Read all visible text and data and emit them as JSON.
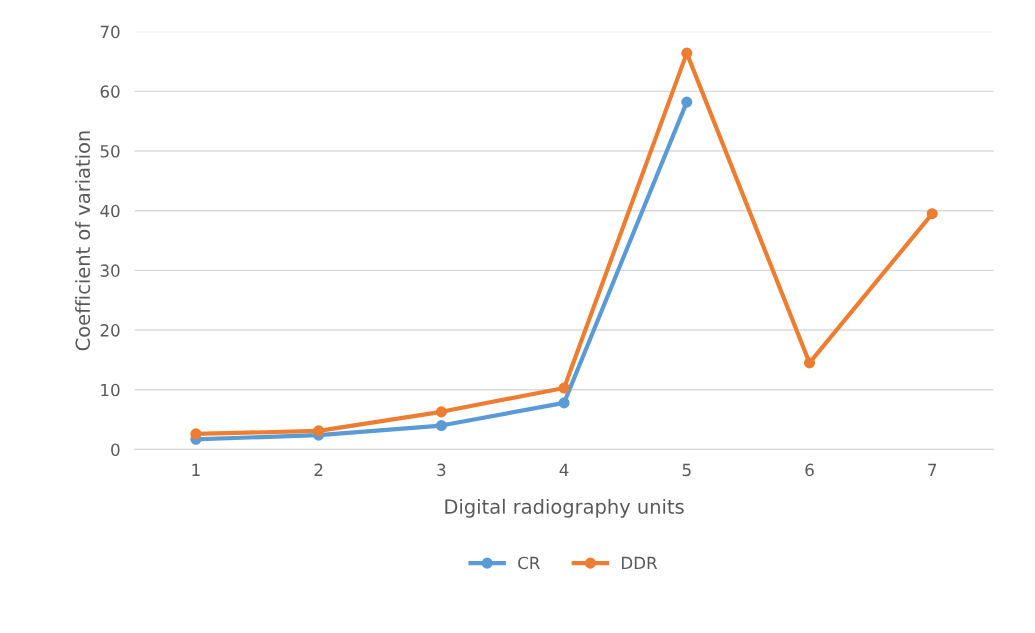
{
  "chart_data": {
    "type": "line",
    "xlabel": "Digital radiography units",
    "ylabel": "Coefficient of variation",
    "categories": [
      "1",
      "2",
      "3",
      "4",
      "5",
      "6",
      "7"
    ],
    "series": [
      {
        "name": "CR",
        "color": "#5b9bd5",
        "values": [
          1.7,
          2.4,
          4.0,
          7.8,
          58.2,
          null,
          null
        ]
      },
      {
        "name": "DDR",
        "color": "#ed7d31",
        "values": [
          2.6,
          3.1,
          6.3,
          10.3,
          66.4,
          14.5,
          39.5
        ]
      }
    ],
    "ylim": [
      0,
      70
    ],
    "yticks": [
      0,
      10,
      20,
      30,
      40,
      50,
      60,
      70
    ],
    "grid": "y",
    "legend": "bottom",
    "marker": "circle",
    "line_style": "solid"
  }
}
